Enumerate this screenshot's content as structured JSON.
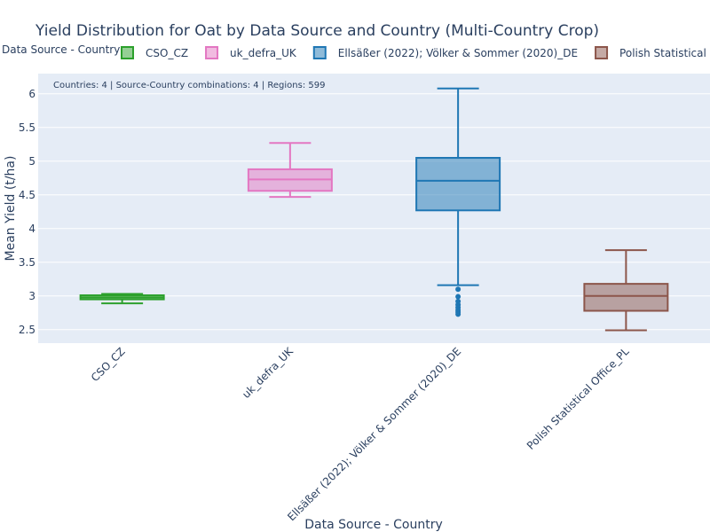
{
  "chart_data": {
    "type": "box",
    "title": "Yield Distribution for Oat by Data Source and Country (Multi-Country Crop)",
    "xlabel": "Data Source - Country",
    "ylabel": "Mean Yield (t/ha)",
    "ylim": [
      2.3,
      6.3
    ],
    "yticks": [
      2.5,
      3,
      3.5,
      4,
      4.5,
      5,
      5.5,
      6
    ],
    "ytick_labels": [
      "2.5",
      "3",
      "3.5",
      "4",
      "4.5",
      "5",
      "5.5",
      "6"
    ],
    "grid": true,
    "legend": {
      "title": "Data Source - Country",
      "placement": "top",
      "orientation": "horizontal"
    },
    "annotation": "Countries: 4 | Source-Country combinations: 4 | Regions: 599",
    "series": [
      {
        "name": "CSO_CZ",
        "color": "#2ca02c",
        "fill": "rgba(44,160,44,0.5)",
        "whisker_low": 2.89,
        "q1": 2.95,
        "median": 2.98,
        "q3": 3.01,
        "whisker_high": 3.03,
        "outliers": []
      },
      {
        "name": "uk_defra_UK",
        "color": "#e377c2",
        "fill": "rgba(227,119,194,0.5)",
        "whisker_low": 4.47,
        "q1": 4.56,
        "median": 4.73,
        "q3": 4.88,
        "whisker_high": 5.27,
        "outliers": []
      },
      {
        "name": "Ellsäßer (2022); Völker & Sommer (2020)_DE",
        "color": "#1f77b4",
        "fill": "rgba(31,119,180,0.5)",
        "whisker_low": 3.16,
        "q1": 4.27,
        "median": 4.71,
        "q3": 5.05,
        "whisker_high": 6.08,
        "outliers": [
          3.1,
          2.99,
          2.92,
          2.87,
          2.83,
          2.79,
          2.76,
          2.73
        ]
      },
      {
        "name": "Polish Statistical Office_PL",
        "color": "#8c564b",
        "fill": "rgba(140,86,75,0.5)",
        "whisker_low": 2.49,
        "q1": 2.78,
        "median": 3.0,
        "q3": 3.18,
        "whisker_high": 3.68,
        "outliers": []
      }
    ]
  }
}
